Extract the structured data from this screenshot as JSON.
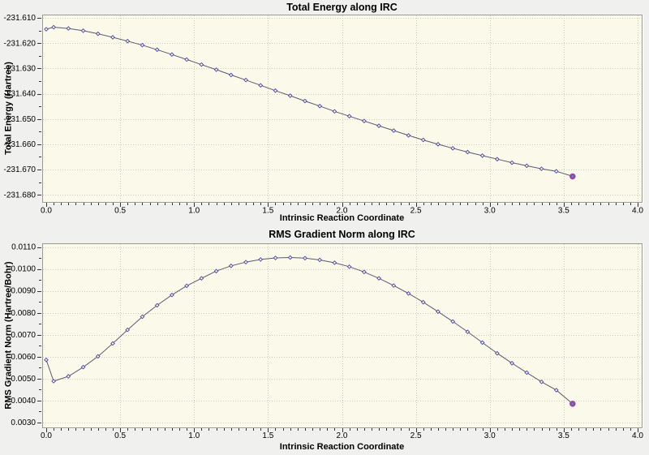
{
  "window": {
    "background": "#f0f0ee"
  },
  "style": {
    "plot_bg": "#fbf9ea",
    "grid_color": "#ccccb8",
    "border_color": "#9a9a92",
    "etch_color": "#ffffff",
    "tick_color": "#333333",
    "text_color": "#000000",
    "line_color": "#5a5a70",
    "marker_color": "#4646a0",
    "marker_fill": "#fbf9ea",
    "highlight_stroke": "#a040a0",
    "highlight_fill": "#bb77bb"
  },
  "chart_data": [
    {
      "type": "line",
      "title": "Total Energy along IRC",
      "xlabel": "Intrinsic Reaction Coordinate",
      "ylabel": "Total Energy (Hartree)",
      "xlim": [
        0.0,
        4.0
      ],
      "ylim": [
        -231.68,
        -231.61
      ],
      "grid": "dotted",
      "legend": "none",
      "x_tick_labels": [
        "0.0",
        "0.5",
        "1.0",
        "1.5",
        "2.0",
        "2.5",
        "3.0",
        "3.5",
        "4.0"
      ],
      "y_tick_labels": [
        "-231.610",
        "-231.620",
        "-231.630",
        "-231.640",
        "-231.650",
        "-231.660",
        "-231.670",
        "-231.680"
      ],
      "x_minor_step": 0.05,
      "y_minor_step": 0.005,
      "last_point_highlighted": true,
      "x": [
        0.0,
        0.05,
        0.15,
        0.25,
        0.35,
        0.45,
        0.55,
        0.65,
        0.75,
        0.85,
        0.95,
        1.05,
        1.15,
        1.25,
        1.35,
        1.45,
        1.55,
        1.65,
        1.75,
        1.85,
        1.95,
        2.05,
        2.15,
        2.25,
        2.35,
        2.45,
        2.55,
        2.65,
        2.75,
        2.85,
        2.95,
        3.05,
        3.15,
        3.25,
        3.35,
        3.45,
        3.56
      ],
      "y": [
        -231.6145,
        -231.6137,
        -231.6142,
        -231.6151,
        -231.6163,
        -231.6177,
        -231.6192,
        -231.6208,
        -231.6226,
        -231.6245,
        -231.6265,
        -231.6285,
        -231.6305,
        -231.6326,
        -231.6346,
        -231.6367,
        -231.6388,
        -231.6408,
        -231.6429,
        -231.6449,
        -231.647,
        -231.6489,
        -231.6508,
        -231.6527,
        -231.6546,
        -231.6565,
        -231.6583,
        -231.66,
        -231.6616,
        -231.6631,
        -231.6645,
        -231.6659,
        -231.6673,
        -231.6685,
        -231.6697,
        -231.6707,
        -231.6727
      ]
    },
    {
      "type": "line",
      "title": "RMS Gradient Norm along IRC",
      "xlabel": "Intrinsic Reaction Coordinate",
      "ylabel": "RMS Gradient Norm (Hartree/Bohr)",
      "xlim": [
        0.0,
        4.0
      ],
      "ylim": [
        0.003,
        0.011
      ],
      "grid": "dotted",
      "legend": "none",
      "x_tick_labels": [
        "0.0",
        "0.5",
        "1.0",
        "1.5",
        "2.0",
        "2.5",
        "3.0",
        "3.5",
        "4.0"
      ],
      "y_tick_labels": [
        "0.0110",
        "0.0100",
        "0.0090",
        "0.0080",
        "0.0070",
        "0.0060",
        "0.0050",
        "0.0040",
        "0.0030"
      ],
      "x_minor_step": 0.05,
      "y_minor_step": 0.0005,
      "last_point_highlighted": true,
      "x": [
        0.0,
        0.05,
        0.15,
        0.25,
        0.35,
        0.45,
        0.55,
        0.65,
        0.75,
        0.85,
        0.95,
        1.05,
        1.15,
        1.25,
        1.35,
        1.45,
        1.55,
        1.65,
        1.75,
        1.85,
        1.95,
        2.05,
        2.15,
        2.25,
        2.35,
        2.45,
        2.55,
        2.65,
        2.75,
        2.85,
        2.95,
        3.05,
        3.15,
        3.25,
        3.35,
        3.45,
        3.56
      ],
      "y": [
        0.00585,
        0.00488,
        0.0051,
        0.00552,
        0.00601,
        0.0066,
        0.00722,
        0.00782,
        0.00834,
        0.00881,
        0.00923,
        0.00957,
        0.0099,
        0.01014,
        0.01031,
        0.01043,
        0.0105,
        0.01052,
        0.01049,
        0.01041,
        0.01028,
        0.0101,
        0.00986,
        0.00957,
        0.00924,
        0.00888,
        0.00848,
        0.00805,
        0.0076,
        0.00713,
        0.00664,
        0.00615,
        0.0057,
        0.00527,
        0.00485,
        0.00447,
        0.00385
      ]
    }
  ]
}
